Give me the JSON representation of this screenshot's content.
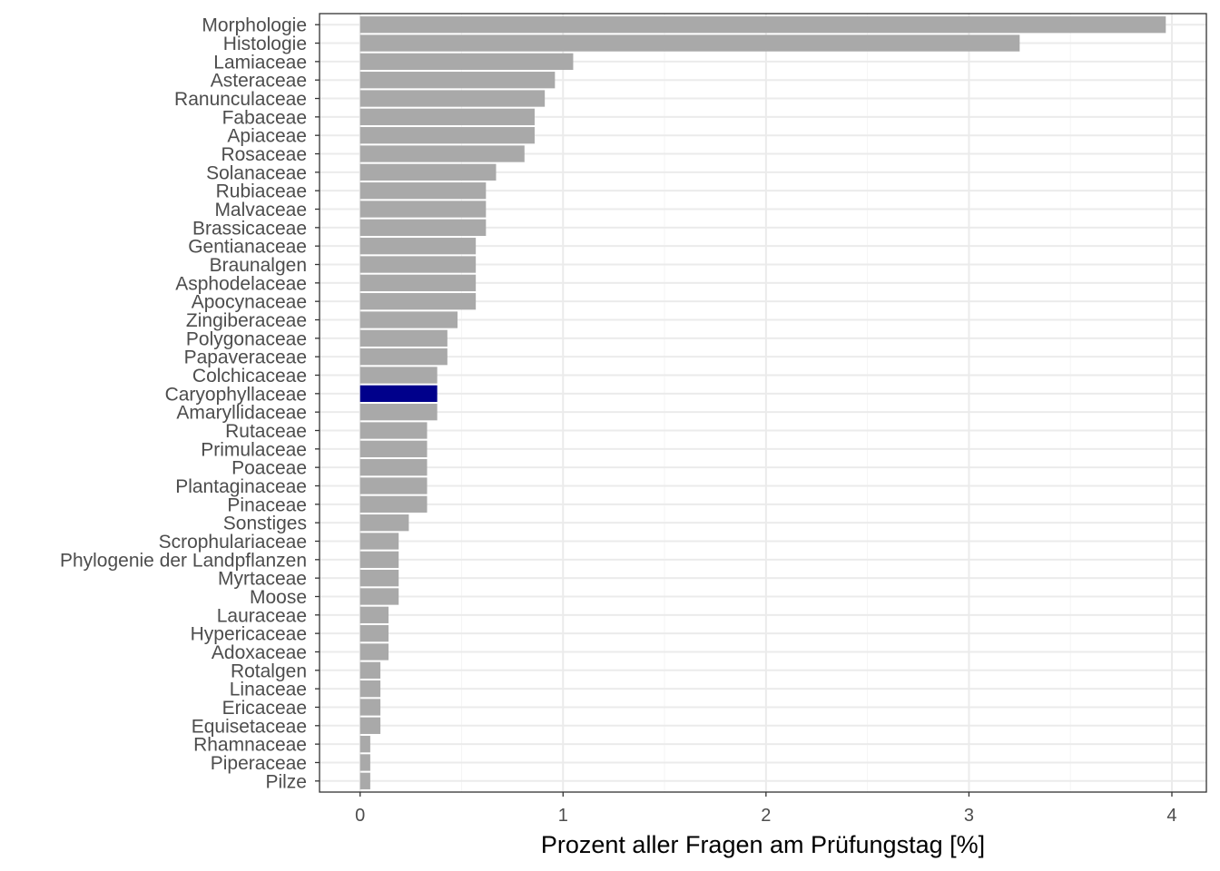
{
  "chart_data": {
    "type": "bar",
    "orientation": "horizontal",
    "title": "",
    "xlabel": "Prozent aller Fragen am Prüfungstag [%]",
    "ylabel": "",
    "xlim": [
      -0.2,
      4.17
    ],
    "xticks": [
      0,
      1,
      2,
      3,
      4
    ],
    "xtick_labels": [
      "0",
      "1",
      "2",
      "3",
      "4"
    ],
    "grid": true,
    "legend": "none",
    "categories": [
      "Morphologie",
      "Histologie",
      "Lamiaceae",
      "Asteraceae",
      "Ranunculaceae",
      "Fabaceae",
      "Apiaceae",
      "Rosaceae",
      "Solanaceae",
      "Rubiaceae",
      "Malvaceae",
      "Brassicaceae",
      "Gentianaceae",
      "Braunalgen",
      "Asphodelaceae",
      "Apocynaceae",
      "Zingiberaceae",
      "Polygonaceae",
      "Papaveraceae",
      "Colchicaceae",
      "Caryophyllaceae",
      "Amaryllidaceae",
      "Rutaceae",
      "Primulaceae",
      "Poaceae",
      "Plantaginaceae",
      "Pinaceae",
      "Sonstiges",
      "Scrophulariaceae",
      "Phylogenie der Landpflanzen",
      "Myrtaceae",
      "Moose",
      "Lauraceae",
      "Hypericaceae",
      "Adoxaceae",
      "Rotalgen",
      "Linaceae",
      "Ericaceae",
      "Equisetaceae",
      "Rhamnaceae",
      "Piperaceae",
      "Pilze"
    ],
    "values": [
      3.97,
      3.25,
      1.05,
      0.96,
      0.91,
      0.86,
      0.86,
      0.81,
      0.67,
      0.62,
      0.62,
      0.62,
      0.57,
      0.57,
      0.57,
      0.57,
      0.48,
      0.43,
      0.43,
      0.38,
      0.38,
      0.38,
      0.33,
      0.33,
      0.33,
      0.33,
      0.33,
      0.24,
      0.19,
      0.19,
      0.19,
      0.19,
      0.14,
      0.14,
      0.14,
      0.1,
      0.1,
      0.1,
      0.1,
      0.05,
      0.05,
      0.05
    ],
    "highlight": "Caryophyllaceae",
    "colors": {
      "bar": "#a9a9a9",
      "highlight": "#00008b",
      "grid_major": "#ebebeb",
      "grid_minor": "#f5f5f5",
      "panel_border": "#333333",
      "axis_text": "#4d4d4d",
      "axis_title": "#000000"
    }
  }
}
